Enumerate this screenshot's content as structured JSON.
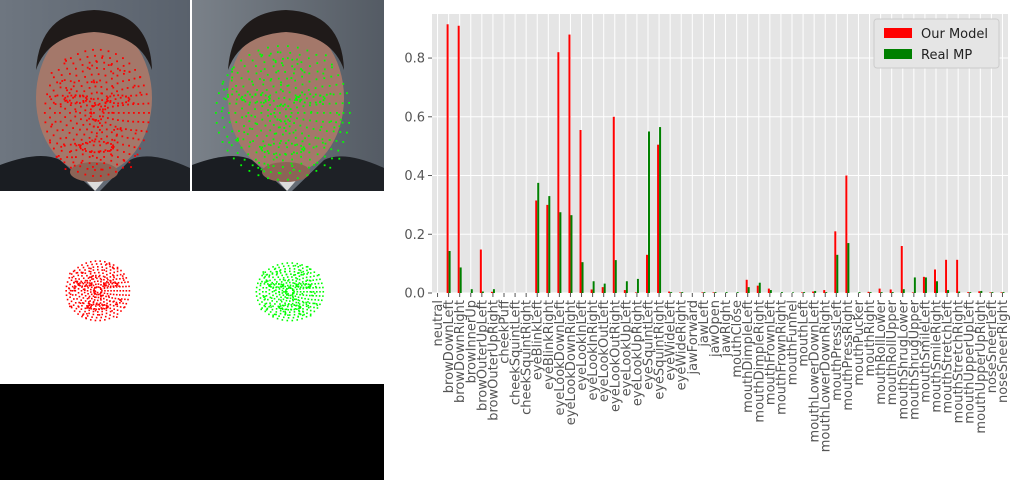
{
  "figure": {
    "face_panels": [
      {
        "name": "Our Model",
        "color": "#ff0000"
      },
      {
        "name": "Real MP",
        "color": "#00ff00"
      }
    ]
  },
  "chart_data": {
    "type": "bar",
    "title": "",
    "xlabel": "",
    "ylabel": "",
    "ylim": [
      0,
      0.95
    ],
    "yticks": [
      "0.0",
      "0.2",
      "0.4",
      "0.6",
      "0.8"
    ],
    "grid": true,
    "legend_position": "top-right",
    "background": "#e5e5e5",
    "categories": [
      "neutral",
      "browDownLeft",
      "browDownRight",
      "browInnerUp",
      "browOuterUpLeft",
      "browOuterUpRight",
      "cheekPuff",
      "cheekSquintLeft",
      "cheekSquintRight",
      "eyeBlinkLeft",
      "eyeBlinkRight",
      "eyeLookDownLeft",
      "eyeLookDownRight",
      "eyeLookInLeft",
      "eyeLookInRight",
      "eyeLookOutLeft",
      "eyeLookOutRight",
      "eyeLookUpLeft",
      "eyeLookUpRight",
      "eyeSquintLeft",
      "eyeSquintRight",
      "eyeWideLeft",
      "eyeWideRight",
      "jawForward",
      "jawLeft",
      "jawOpen",
      "jawRight",
      "mouthClose",
      "mouthDimpleLeft",
      "mouthDimpleRight",
      "mouthFrownLeft",
      "mouthFrownRight",
      "mouthFunnel",
      "mouthLeft",
      "mouthLowerDownLeft",
      "mouthLowerDownRight",
      "mouthPressLeft",
      "mouthPressRight",
      "mouthPucker",
      "mouthRight",
      "mouthRollLower",
      "mouthRollUpper",
      "mouthShrugLower",
      "mouthShrugUpper",
      "mouthSmileLeft",
      "mouthSmileRight",
      "mouthStretchLeft",
      "mouthStretchRight",
      "mouthUpperUpLeft",
      "mouthUpperUpRight",
      "noseSneerLeft",
      "noseSneerRight"
    ],
    "series": [
      {
        "name": "Our Model",
        "color": "#ff0000",
        "values": [
          0,
          0.915,
          0.91,
          0,
          0.148,
          0.004,
          0,
          0,
          0,
          0.315,
          0.3,
          0.82,
          0.88,
          0.555,
          0.012,
          0.02,
          0.6,
          0.01,
          0.002,
          0.13,
          0.505,
          0.005,
          0.002,
          0,
          0.002,
          0.002,
          0,
          0,
          0.045,
          0.025,
          0.015,
          0,
          0,
          0.002,
          0.005,
          0.01,
          0.21,
          0.4,
          0,
          0.004,
          0.015,
          0.012,
          0.16,
          0.002,
          0.055,
          0.08,
          0.113,
          0.113,
          0.003,
          0.006,
          0.002,
          0.002
        ]
      },
      {
        "name": "Real MP",
        "color": "#008000",
        "values": [
          0,
          0.143,
          0.087,
          0.013,
          0.005,
          0.013,
          0,
          0,
          0,
          0.375,
          0.33,
          0.275,
          0.265,
          0.105,
          0.04,
          0.032,
          0.112,
          0.04,
          0.048,
          0.55,
          0.565,
          0.003,
          0.003,
          0,
          0.003,
          0.003,
          0.003,
          0.003,
          0.02,
          0.035,
          0.01,
          0.003,
          0.002,
          0.003,
          0.007,
          0.003,
          0.13,
          0.17,
          0.003,
          0.003,
          0.003,
          0.003,
          0.013,
          0.053,
          0.053,
          0.04,
          0.01,
          0.005,
          0.003,
          0.007,
          0.003,
          0.003
        ]
      }
    ]
  }
}
